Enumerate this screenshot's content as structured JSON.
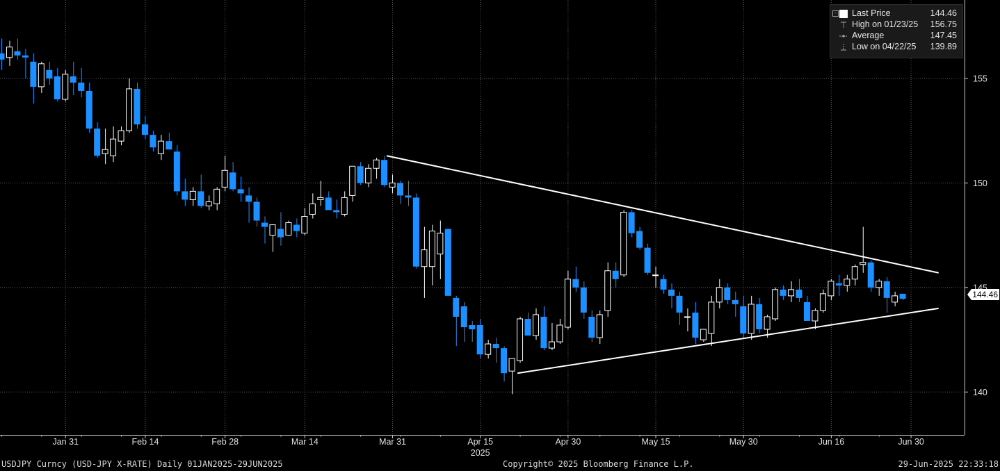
{
  "legend": {
    "last_price": {
      "label": "Last Price",
      "value": "144.46"
    },
    "high": {
      "label": "High on 01/23/25",
      "value": "156.75"
    },
    "average": {
      "label": "Average",
      "value": "147.45"
    },
    "low": {
      "label": "Low on 04/22/25",
      "value": "139.89"
    }
  },
  "footer": {
    "left": "USDJPY Curncy (USD-JPY X-RATE)  Daily 01JAN2025-29JUN2025",
    "center": "Copyright© 2025 Bloomberg Finance L.P.",
    "right": "29-Jun-2025 22:33:18"
  },
  "price_tag": "144.46",
  "colors": {
    "background": "#000000",
    "up_candle": "#ffffff",
    "down_candle": "#1e8fff",
    "grid": "#5a5a5a",
    "trendline": "#ffffff"
  },
  "chart_data": {
    "type": "candlestick",
    "title": "",
    "ylim": [
      137.95,
      158.75
    ],
    "y_ticks": [
      140,
      145,
      150,
      155
    ],
    "x_tick_labels": [
      "Jan 31",
      "Feb 14",
      "Feb 28",
      "Mar 14",
      "Mar 31",
      "Apr 15",
      "Apr 30",
      "May 15",
      "May 30",
      "Jun 16",
      "Jun 30"
    ],
    "x_sub_label": "2025",
    "grid": true,
    "legend_position": "top-right",
    "series": [
      {
        "name": "USDJPY Curncy",
        "ohlc": [
          [
            156.2,
            156.9,
            155.4,
            155.9
          ],
          [
            156.0,
            156.8,
            155.6,
            156.5
          ],
          [
            156.3,
            156.9,
            155.9,
            156.1
          ],
          [
            156.1,
            156.4,
            155.0,
            156.0
          ],
          [
            155.8,
            156.2,
            153.8,
            154.6
          ],
          [
            154.6,
            155.8,
            154.3,
            155.7
          ],
          [
            155.4,
            155.8,
            154.7,
            155.0
          ],
          [
            155.1,
            155.5,
            153.9,
            154.0
          ],
          [
            154.0,
            155.4,
            153.9,
            155.2
          ],
          [
            155.1,
            155.8,
            154.2,
            154.8
          ],
          [
            154.8,
            155.5,
            154.1,
            154.4
          ],
          [
            154.4,
            154.8,
            152.4,
            152.6
          ],
          [
            152.6,
            152.9,
            151.2,
            151.3
          ],
          [
            151.4,
            152.6,
            150.9,
            151.6
          ],
          [
            151.3,
            152.7,
            151.0,
            152.1
          ],
          [
            152.0,
            152.7,
            151.8,
            152.5
          ],
          [
            152.5,
            155.0,
            152.4,
            154.5
          ],
          [
            154.5,
            154.8,
            152.6,
            152.8
          ],
          [
            152.8,
            153.2,
            152.1,
            152.3
          ],
          [
            152.3,
            152.5,
            151.5,
            151.7
          ],
          [
            151.4,
            152.3,
            151.1,
            152.0
          ],
          [
            152.0,
            152.4,
            151.6,
            151.6
          ],
          [
            151.5,
            151.8,
            149.4,
            149.6
          ],
          [
            149.6,
            150.2,
            148.9,
            149.2
          ],
          [
            149.2,
            149.8,
            148.9,
            149.6
          ],
          [
            149.6,
            150.4,
            148.8,
            148.9
          ],
          [
            148.9,
            149.4,
            148.7,
            149.1
          ],
          [
            149.0,
            149.8,
            148.7,
            149.7
          ],
          [
            149.8,
            151.3,
            149.6,
            150.6
          ],
          [
            150.5,
            151.0,
            149.6,
            149.7
          ],
          [
            149.7,
            150.3,
            149.1,
            149.5
          ],
          [
            149.4,
            149.8,
            148.1,
            149.1
          ],
          [
            149.1,
            149.3,
            147.9,
            148.2
          ],
          [
            148.1,
            148.4,
            147.1,
            147.9
          ],
          [
            147.5,
            148.0,
            146.7,
            148.0
          ],
          [
            147.8,
            148.6,
            147.0,
            147.4
          ],
          [
            147.5,
            148.2,
            147.6,
            148.1
          ],
          [
            148.0,
            148.3,
            147.4,
            147.7
          ],
          [
            147.6,
            148.8,
            147.5,
            148.4
          ],
          [
            148.5,
            149.5,
            148.3,
            149.0
          ],
          [
            149.2,
            150.1,
            148.9,
            149.3
          ],
          [
            149.3,
            149.6,
            148.9,
            148.7
          ],
          [
            148.7,
            149.2,
            148.3,
            148.6
          ],
          [
            148.5,
            149.6,
            148.4,
            149.3
          ],
          [
            149.4,
            150.8,
            149.1,
            150.8
          ],
          [
            150.8,
            151.0,
            149.9,
            150.0
          ],
          [
            150.0,
            150.9,
            149.8,
            150.7
          ],
          [
            150.7,
            151.2,
            150.2,
            151.1
          ],
          [
            151.1,
            151.3,
            149.8,
            149.9
          ],
          [
            149.8,
            150.4,
            149.5,
            150.0
          ],
          [
            150.0,
            150.1,
            149.0,
            149.4
          ],
          [
            149.4,
            150.1,
            148.9,
            149.3
          ],
          [
            149.3,
            149.5,
            145.9,
            146.0
          ],
          [
            146.0,
            147.9,
            144.5,
            146.8
          ],
          [
            146.0,
            148.0,
            145.1,
            147.7
          ],
          [
            146.6,
            148.2,
            145.4,
            147.6
          ],
          [
            147.8,
            147.8,
            144.6,
            144.6
          ],
          [
            144.5,
            144.6,
            142.2,
            143.6
          ],
          [
            144.1,
            144.3,
            142.4,
            143.1
          ],
          [
            143.2,
            143.4,
            142.4,
            143.0
          ],
          [
            143.2,
            143.5,
            141.6,
            141.8
          ],
          [
            141.8,
            142.5,
            141.6,
            142.3
          ],
          [
            142.3,
            142.6,
            141.4,
            142.1
          ],
          [
            142.1,
            142.2,
            140.5,
            140.9
          ],
          [
            141.0,
            141.6,
            139.9,
            141.6
          ],
          [
            141.5,
            143.6,
            141.4,
            143.5
          ],
          [
            143.5,
            143.8,
            142.8,
            142.7
          ],
          [
            142.7,
            144.0,
            142.5,
            143.7
          ],
          [
            143.6,
            144.1,
            142.0,
            142.1
          ],
          [
            142.1,
            143.3,
            142.0,
            142.4
          ],
          [
            142.4,
            143.5,
            142.3,
            143.2
          ],
          [
            143.1,
            145.8,
            143.0,
            145.4
          ],
          [
            145.4,
            146.0,
            144.8,
            145.0
          ],
          [
            145.0,
            145.3,
            143.5,
            143.8
          ],
          [
            143.6,
            143.9,
            142.4,
            142.6
          ],
          [
            142.6,
            143.9,
            142.3,
            143.7
          ],
          [
            143.9,
            146.2,
            143.6,
            145.8
          ],
          [
            145.8,
            146.2,
            145.0,
            145.4
          ],
          [
            145.6,
            148.7,
            145.5,
            148.6
          ],
          [
            148.6,
            148.7,
            147.4,
            147.6
          ],
          [
            147.7,
            147.9,
            146.8,
            146.9
          ],
          [
            146.9,
            147.1,
            145.6,
            145.7
          ],
          [
            145.6,
            146.0,
            145.0,
            145.6
          ],
          [
            145.4,
            145.6,
            144.7,
            144.9
          ],
          [
            144.9,
            145.2,
            144.0,
            144.6
          ],
          [
            144.6,
            144.8,
            143.2,
            143.8
          ],
          [
            143.6,
            144.0,
            142.9,
            143.6
          ],
          [
            143.8,
            144.3,
            142.3,
            142.6
          ],
          [
            142.5,
            143.0,
            142.4,
            143.0
          ],
          [
            142.8,
            144.6,
            142.2,
            144.3
          ],
          [
            144.3,
            145.4,
            144.0,
            145.0
          ],
          [
            145.0,
            145.2,
            144.2,
            144.4
          ],
          [
            144.4,
            144.8,
            143.6,
            144.2
          ],
          [
            144.1,
            144.6,
            142.6,
            142.8
          ],
          [
            142.8,
            144.6,
            142.5,
            144.2
          ],
          [
            144.2,
            144.5,
            142.8,
            143.0
          ],
          [
            143.0,
            143.7,
            142.6,
            143.6
          ],
          [
            143.5,
            145.0,
            143.4,
            144.9
          ],
          [
            144.9,
            145.1,
            144.4,
            144.6
          ],
          [
            144.6,
            145.3,
            144.3,
            144.9
          ],
          [
            144.9,
            145.4,
            144.3,
            144.5
          ],
          [
            144.3,
            144.6,
            143.4,
            143.4
          ],
          [
            143.4,
            144.0,
            143.0,
            143.9
          ],
          [
            143.9,
            144.9,
            143.8,
            144.7
          ],
          [
            144.6,
            145.4,
            144.4,
            145.3
          ],
          [
            145.2,
            145.6,
            144.6,
            145.1
          ],
          [
            145.1,
            145.6,
            144.8,
            145.4
          ],
          [
            145.4,
            146.1,
            145.1,
            146.0
          ],
          [
            146.1,
            147.9,
            145.7,
            146.2
          ],
          [
            146.2,
            146.3,
            144.8,
            145.0
          ],
          [
            145.0,
            145.4,
            144.6,
            145.3
          ],
          [
            145.3,
            145.5,
            143.8,
            144.5
          ],
          [
            144.3,
            144.8,
            144.1,
            144.6
          ],
          [
            144.7,
            144.7,
            144.4,
            144.46
          ]
        ]
      }
    ],
    "trendlines": [
      {
        "from": {
          "x": "Mar 27",
          "y": 151.3
        },
        "to": {
          "x": "Jul 2",
          "y": 145.7
        }
      },
      {
        "from": {
          "x": "Apr 22",
          "y": 140.9
        },
        "to": {
          "x": "Jul 2",
          "y": 144.0
        }
      }
    ]
  }
}
